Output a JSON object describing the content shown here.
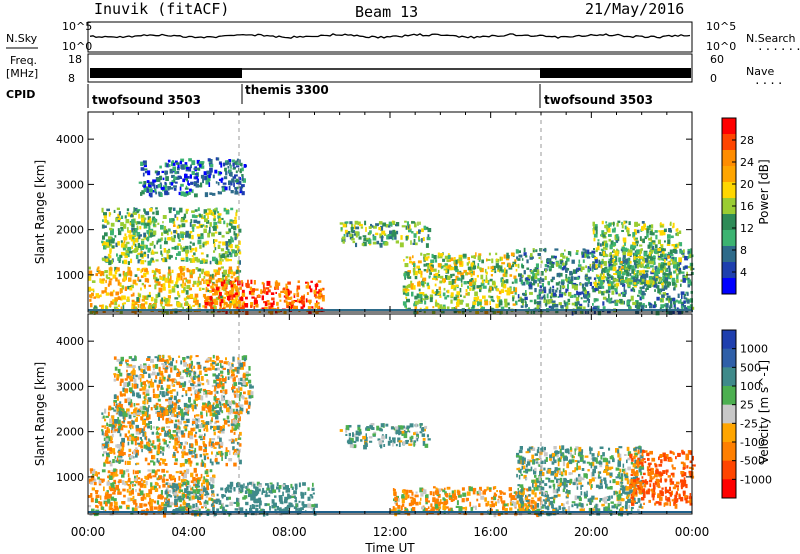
{
  "header": {
    "station": "Inuvik (fitACF)",
    "beam": "Beam 13",
    "date": "21/May/2016"
  },
  "top_panels": {
    "nsky_label": "N.Sky",
    "nsky_ticks": [
      "10^5",
      "10^0"
    ],
    "nsearch_label": "N.Search",
    "nsearch_ticks": [
      "10^5",
      "10^0"
    ],
    "freq_label_1": "Freq.",
    "freq_label_2": "[MHz]",
    "freq_ticks": [
      "18",
      "8"
    ],
    "nave_label": "Nave",
    "nave_ticks": [
      "60",
      "0"
    ],
    "cpid_label": "CPID"
  },
  "cpid_segments": [
    {
      "name": "twofsound 3503",
      "start_hour": 0,
      "end_hour": 6
    },
    {
      "name": "themis 3300",
      "start_hour": 6,
      "end_hour": 18
    },
    {
      "name": "twofsound 3503",
      "start_hour": 18,
      "end_hour": 24
    }
  ],
  "colorbars": {
    "power": {
      "label": "Power [dB]",
      "ticks": [
        "28",
        "24",
        "20",
        "16",
        "12",
        "8",
        "4"
      ],
      "colors": [
        "#ff0000",
        "#ff4500",
        "#ff8c00",
        "#ffa500",
        "#ffd700",
        "#9acd32",
        "#2e8b57",
        "#3cb371",
        "#2e6b8a",
        "#1e3fae",
        "#0000ff"
      ]
    },
    "velocity": {
      "label": "Velocity [m s^-1]",
      "ticks": [
        "1000",
        "500",
        "100",
        "25",
        "-25",
        "-100",
        "-500",
        "-1000"
      ],
      "colors": [
        "#1f3fae",
        "#2f5fa8",
        "#3f8a8a",
        "#4caf50",
        "#c8c8c8",
        "#ffa500",
        "#ff7f00",
        "#ff4500",
        "#ff0000"
      ]
    }
  },
  "chart_data": [
    {
      "type": "heatmap",
      "title": "",
      "ylabel": "Slant Range [km]",
      "xlabel": "",
      "ylim": [
        180,
        4600
      ],
      "y_ticks": [
        1000,
        2000,
        3000,
        4000
      ],
      "xlim": [
        0,
        24
      ],
      "x_ticks": [
        "00:00",
        "04:00",
        "08:00",
        "12:00",
        "16:00",
        "20:00",
        "00:00"
      ],
      "colorbar": "Power [dB]",
      "echo_regions": [
        {
          "t0": 0.0,
          "t1": 6.0,
          "r0": 200,
          "r1": 1200,
          "value": 20
        },
        {
          "t0": 2.0,
          "t1": 6.2,
          "r0": 2800,
          "r1": 3600,
          "value": 6
        },
        {
          "t0": 4.6,
          "t1": 9.3,
          "r0": 200,
          "r1": 900,
          "value": 28
        },
        {
          "t0": 0.5,
          "t1": 6.0,
          "r0": 1300,
          "r1": 2500,
          "value": 14
        },
        {
          "t0": 10.0,
          "t1": 13.5,
          "r0": 1700,
          "r1": 2200,
          "value": 12
        },
        {
          "t0": 12.5,
          "t1": 17.0,
          "r0": 200,
          "r1": 1500,
          "value": 16
        },
        {
          "t0": 17.0,
          "t1": 24.0,
          "r0": 200,
          "r1": 1600,
          "value": 10
        },
        {
          "t0": 20.0,
          "t1": 23.5,
          "r0": 800,
          "r1": 2200,
          "value": 14
        }
      ]
    },
    {
      "type": "heatmap",
      "title": "",
      "ylabel": "Slant Range [km]",
      "xlabel": "Time UT",
      "ylim": [
        180,
        4600
      ],
      "y_ticks": [
        1000,
        2000,
        3000,
        4000
      ],
      "xlim": [
        0,
        24
      ],
      "x_ticks": [
        "00:00",
        "04:00",
        "08:00",
        "12:00",
        "16:00",
        "20:00",
        "00:00"
      ],
      "colorbar": "Velocity [m s^-1]",
      "echo_regions": [
        {
          "t0": 0.0,
          "t1": 5.0,
          "r0": 200,
          "r1": 1200,
          "value": -100
        },
        {
          "t0": 1.0,
          "t1": 6.5,
          "r0": 2400,
          "r1": 3700,
          "value": 0
        },
        {
          "t0": 3.0,
          "t1": 9.0,
          "r0": 200,
          "r1": 900,
          "value": 200
        },
        {
          "t0": 0.5,
          "t1": 6.0,
          "r0": 1300,
          "r1": 2600,
          "value": -20
        },
        {
          "t0": 10.0,
          "t1": 13.5,
          "r0": 1700,
          "r1": 2200,
          "value": 150
        },
        {
          "t0": 12.0,
          "t1": 18.0,
          "r0": 200,
          "r1": 800,
          "value": -100
        },
        {
          "t0": 17.0,
          "t1": 22.0,
          "r0": 200,
          "r1": 1700,
          "value": 100
        },
        {
          "t0": 21.5,
          "t1": 24.0,
          "r0": 400,
          "r1": 1600,
          "value": -500
        }
      ]
    }
  ]
}
